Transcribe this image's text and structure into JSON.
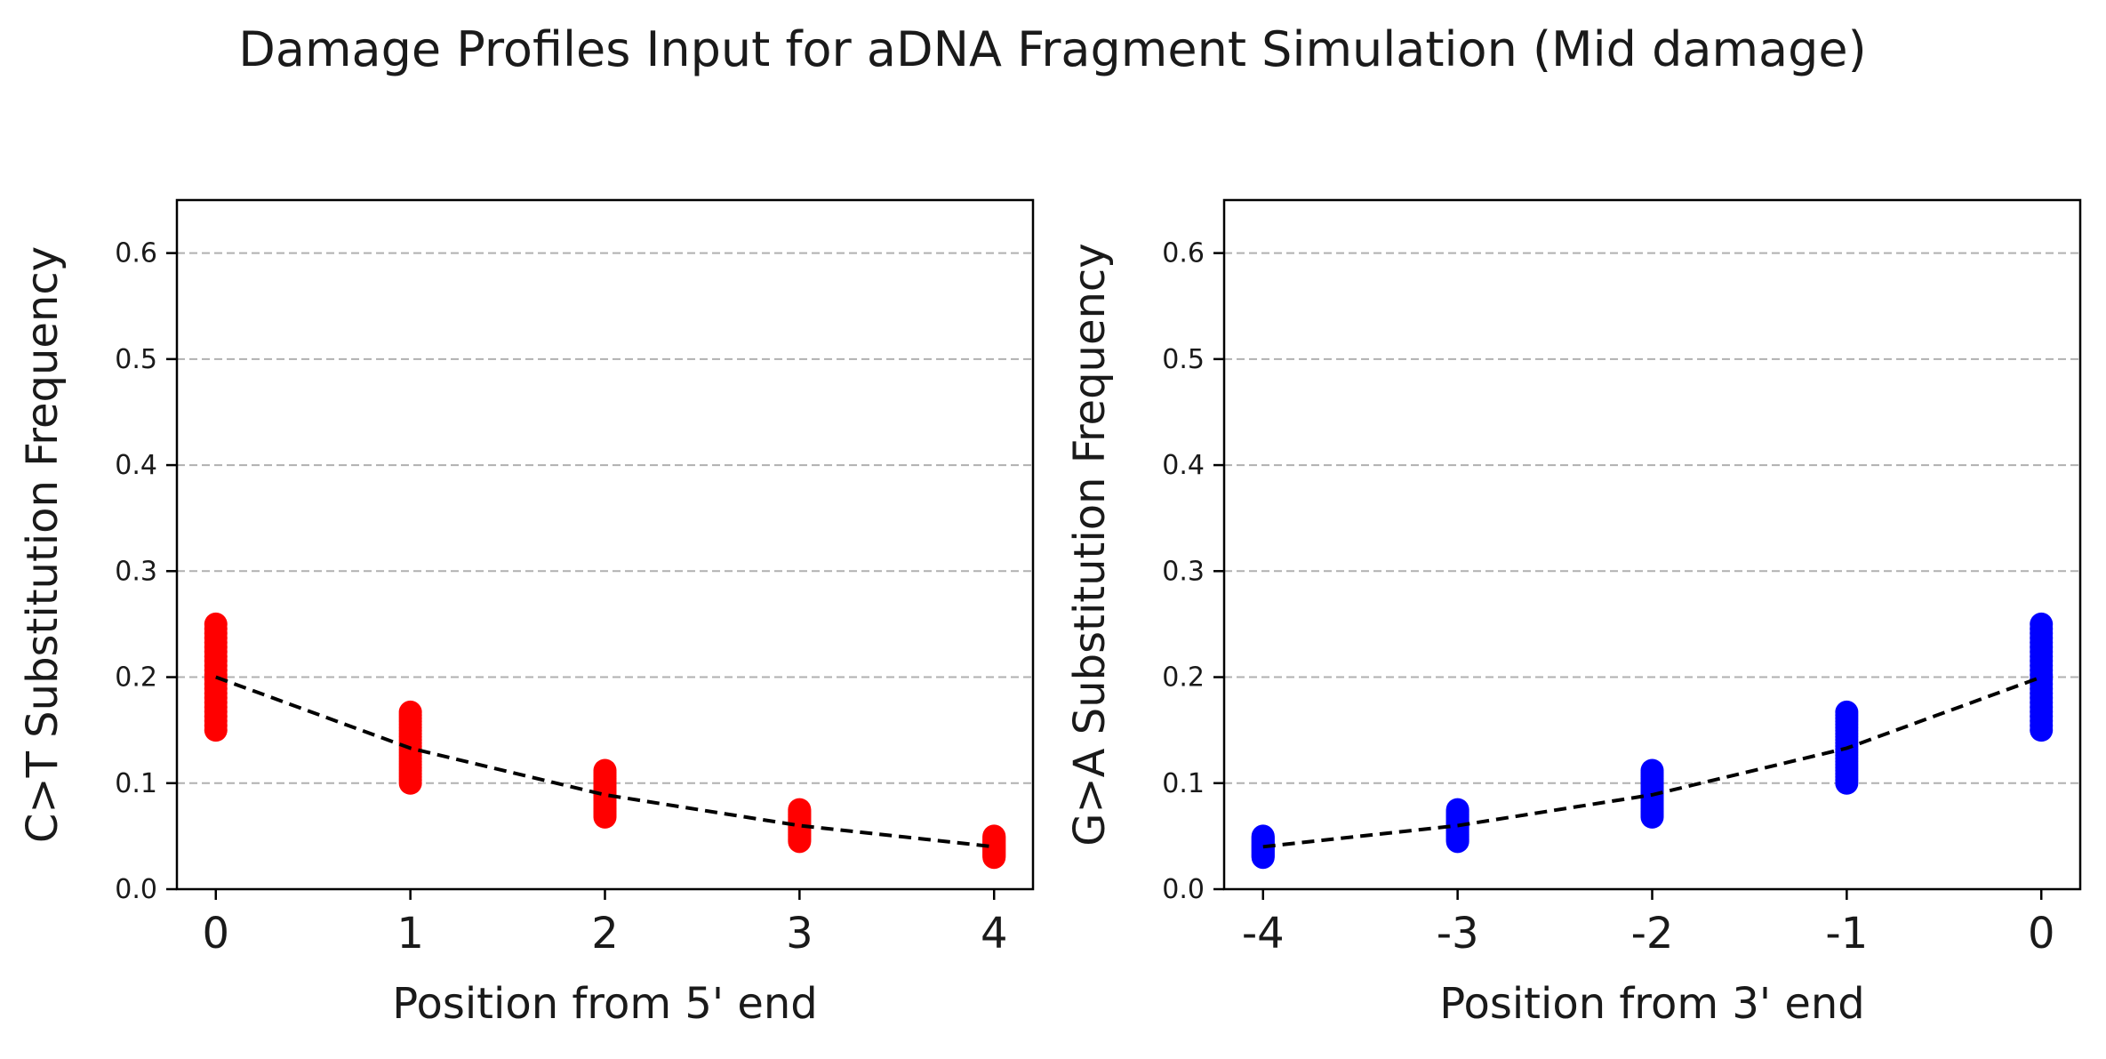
{
  "figure": {
    "title": "Damage Profiles Input for aDNA Fragment Simulation (Mid damage)"
  },
  "chart_data": [
    {
      "type": "scatter",
      "panel": "left",
      "xlabel": "Position from 5' end",
      "ylabel": "C>T Substitution Frequency",
      "x_ticks": [
        "0",
        "1",
        "2",
        "3",
        "4"
      ],
      "x_values": [
        0,
        1,
        2,
        3,
        4
      ],
      "xlim": [
        -0.2,
        4.2
      ],
      "ylim": [
        0.0,
        0.65
      ],
      "y_ticks": [
        0.0,
        0.1,
        0.2,
        0.3,
        0.4,
        0.5,
        0.6
      ],
      "y_tick_labels": [
        "0.0",
        "0.1",
        "0.2",
        "0.3",
        "0.4",
        "0.5",
        "0.6"
      ],
      "grid": "y dashed",
      "point_color": "#ff0000",
      "scatter_ranges": [
        [
          0.15,
          0.25
        ],
        [
          0.1,
          0.167
        ],
        [
          0.068,
          0.112
        ],
        [
          0.045,
          0.075
        ],
        [
          0.03,
          0.05
        ]
      ],
      "mean_line": {
        "x": [
          0,
          1,
          2,
          3,
          4
        ],
        "y": [
          0.2,
          0.133,
          0.089,
          0.06,
          0.04
        ],
        "color": "#000000",
        "style": "dashed"
      }
    },
    {
      "type": "scatter",
      "panel": "right",
      "xlabel": "Position from 3' end",
      "ylabel": "G>A Substitution Frequency",
      "x_ticks": [
        "-4",
        "-3",
        "-2",
        "-1",
        "0"
      ],
      "x_values": [
        -4,
        -3,
        -2,
        -1,
        0
      ],
      "xlim": [
        -4.2,
        0.2
      ],
      "ylim": [
        0.0,
        0.65
      ],
      "y_ticks": [
        0.0,
        0.1,
        0.2,
        0.3,
        0.4,
        0.5,
        0.6
      ],
      "y_tick_labels": [
        "0.0",
        "0.1",
        "0.2",
        "0.3",
        "0.4",
        "0.5",
        "0.6"
      ],
      "grid": "y dashed",
      "point_color": "#0000ff",
      "scatter_ranges": [
        [
          0.03,
          0.05
        ],
        [
          0.045,
          0.075
        ],
        [
          0.068,
          0.112
        ],
        [
          0.1,
          0.167
        ],
        [
          0.15,
          0.25
        ]
      ],
      "mean_line": {
        "x": [
          -4,
          -3,
          -2,
          -1,
          0
        ],
        "y": [
          0.04,
          0.06,
          0.089,
          0.133,
          0.2
        ],
        "color": "#000000",
        "style": "dashed"
      }
    }
  ]
}
